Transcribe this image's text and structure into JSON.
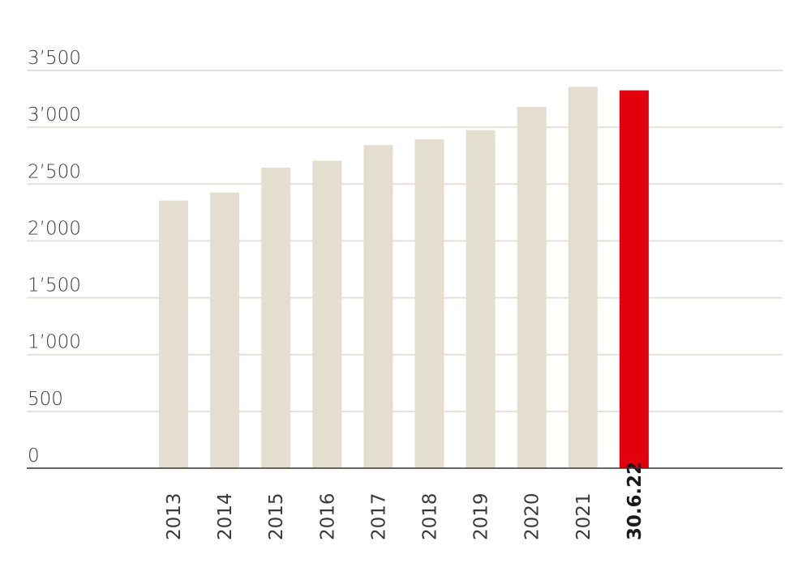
{
  "chart_data": {
    "type": "bar",
    "categories": [
      "2013",
      "2014",
      "2015",
      "2016",
      "2017",
      "2018",
      "2019",
      "2020",
      "2021",
      "30.6.22"
    ],
    "values": [
      2355,
      2425,
      2645,
      2705,
      2845,
      2895,
      2975,
      3180,
      3355,
      3325
    ],
    "highlighted_category": "30.6.22",
    "ylim": [
      0,
      3500
    ],
    "yticks": [
      0,
      500,
      1000,
      1500,
      2000,
      2500,
      3000,
      3500
    ],
    "ytick_labels": [
      "0",
      "500",
      "1’000",
      "1’500",
      "2’000",
      "2’500",
      "3’000",
      "3’500"
    ],
    "title": "",
    "xlabel": "",
    "ylabel": "",
    "grid": true,
    "legend": "none",
    "colors": {
      "bar": "#e4ded0",
      "highlight": "#e2000f",
      "grid": "#e6e1d6",
      "axis": "#333333"
    }
  }
}
